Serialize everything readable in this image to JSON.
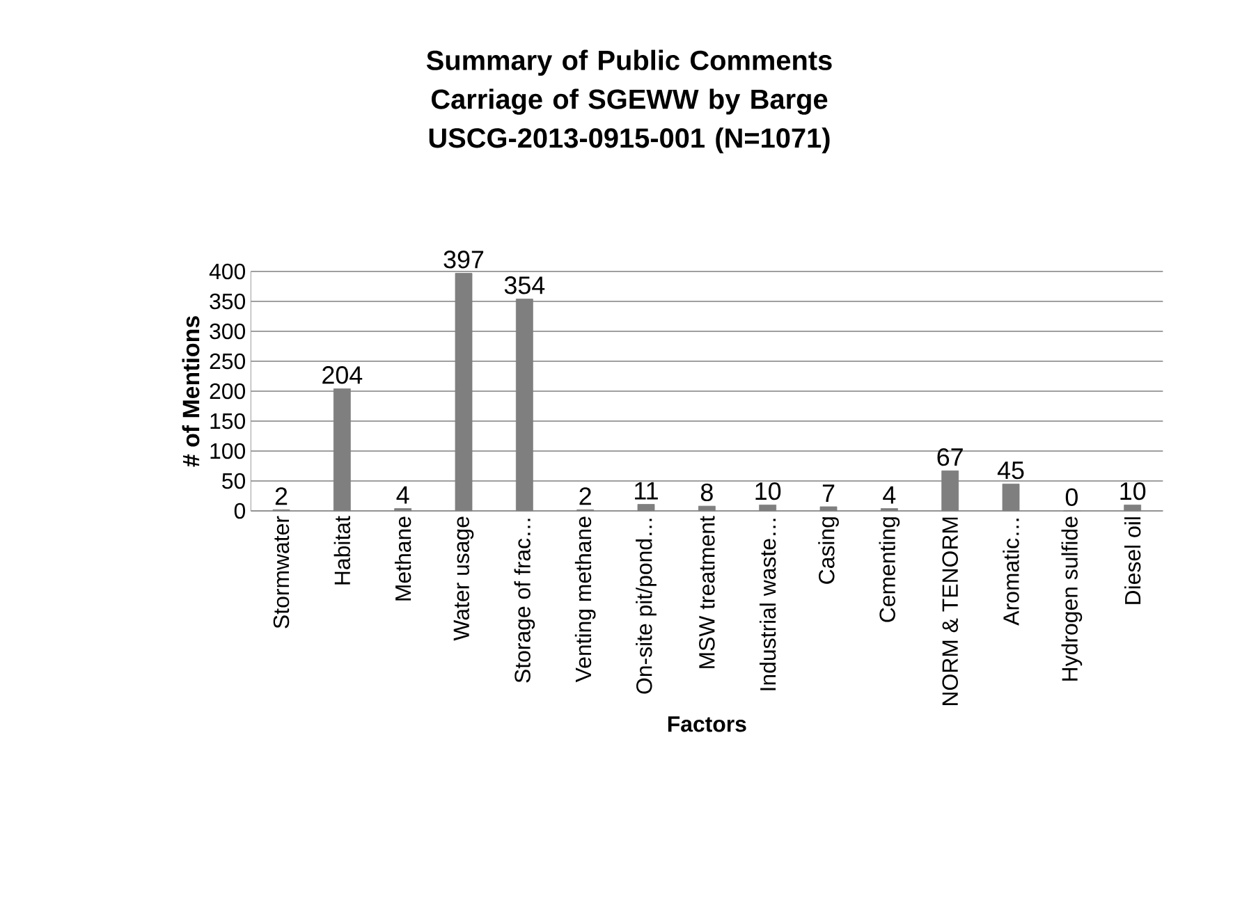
{
  "chart_data": {
    "type": "bar",
    "title": "Summary of Public Comments Carriage of SGEWW by Barge",
    "subtitle": "USCG-2013-0915-001 (N=1071)",
    "xlabel": "Factors",
    "ylabel": "# of Mentions",
    "categories": [
      "Stormwater",
      "Habitat",
      "Methane",
      "Water usage",
      "Storage of frac…",
      "Venting methane",
      "On-site pit/pond…",
      "MSW treatment",
      "Industrial waste…",
      "Casing",
      "Cementing",
      "NORM & TENORM",
      "Aromatic…",
      "Hydrogen sulfide",
      "Diesel oil"
    ],
    "values": [
      2,
      204,
      4,
      397,
      354,
      2,
      11,
      8,
      10,
      7,
      4,
      67,
      45,
      0,
      10
    ],
    "color": "#7f7f7f",
    "ylim": [
      0,
      400
    ],
    "yticks": [
      0,
      50,
      100,
      150,
      200,
      250,
      300,
      350,
      400
    ],
    "grid": "y",
    "data_labels": true
  }
}
